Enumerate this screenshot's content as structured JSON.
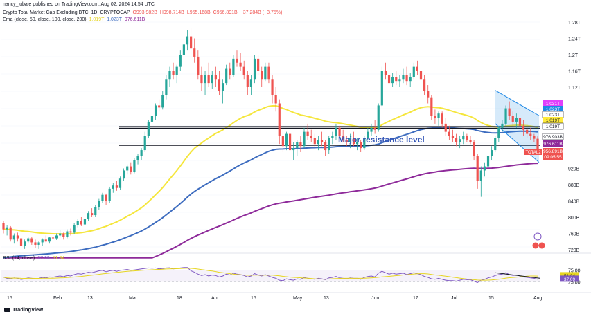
{
  "publisher": "nancy_lubale published on TradingView.com, Aug 02, 2024 14:54 UTC",
  "symbol": {
    "title": "Crypto Total Market Cap Excluding BTC, 1D, CRYPTOCAP",
    "o": "O993.982B",
    "h": "H998.714B",
    "l": "L955.168B",
    "c": "C956.891B",
    "chg": "−37.284B (−3.75%)"
  },
  "ema": {
    "title": "Ema (close, 50, close, 100, close, 200)",
    "v50": "1.019T",
    "v100": "1.023T",
    "v200": "976.611B"
  },
  "rsi": {
    "title": "RSI (14, close)",
    "v1": "37.09",
    "v2": "51.84"
  },
  "annotation": "Major resistance level",
  "footer": "TradingView",
  "colors": {
    "up": "#26a69a",
    "down": "#ef5350",
    "ema50": "#f5e63c",
    "ema100": "#3d6cbf",
    "ema200": "#8e2a9a",
    "rsi": "#7e57c2",
    "channel": "#1e88e5"
  },
  "chart_data": {
    "type": "candlestick",
    "title": "Crypto Total Market Cap Excluding BTC, 1D, CRYPTOCAP",
    "y_axis_ticks": [
      "1.28T",
      "1.24T",
      "1.2T",
      "1.16T",
      "1.12T",
      "920B",
      "880B",
      "840B",
      "800B",
      "760B",
      "720B"
    ],
    "x_axis_ticks": [
      "15",
      "Feb",
      "13",
      "Mar",
      "18",
      "Apr",
      "15",
      "May",
      "13",
      "Jun",
      "17",
      "Jul",
      "15",
      "Aug"
    ],
    "price_labels": [
      {
        "text": "1.031T",
        "color": "#e040fb"
      },
      {
        "text": "1.023T",
        "color": "#1e88e5"
      },
      {
        "text": "1.023T",
        "color": "#131722"
      },
      {
        "text": "1.019T",
        "color": "#ffeb3b"
      },
      {
        "text": "1.019T",
        "color": "#131722"
      },
      {
        "text": "976.903B",
        "color": "#131722"
      },
      {
        "text": "976.611B",
        "color": "#8e2a9a"
      },
      {
        "text": "956.891B",
        "color": "#ef5350"
      },
      {
        "text": "09:05:55",
        "color": "#ef5350"
      }
    ],
    "total_tag": "TOTAL2",
    "rsi_ticks": [
      "75.00",
      "25.00"
    ],
    "rsi_labels": [
      "51.84",
      "37.09"
    ],
    "resistance_levels": [
      "1.019T",
      "1.023T",
      "976.903B"
    ],
    "ohlc_daily": [
      [
        785,
        790,
        760,
        770
      ],
      [
        770,
        780,
        755,
        775
      ],
      [
        775,
        778,
        740,
        745
      ],
      [
        745,
        760,
        735,
        755
      ],
      [
        755,
        762,
        740,
        748
      ],
      [
        748,
        755,
        725,
        730
      ],
      [
        730,
        745,
        722,
        740
      ],
      [
        740,
        752,
        735,
        748
      ],
      [
        748,
        752,
        732,
        738
      ],
      [
        738,
        745,
        725,
        732
      ],
      [
        732,
        742,
        722,
        738
      ],
      [
        738,
        748,
        730,
        745
      ],
      [
        745,
        755,
        738,
        740
      ],
      [
        740,
        752,
        735,
        750
      ],
      [
        750,
        758,
        742,
        748
      ],
      [
        748,
        760,
        744,
        755
      ],
      [
        755,
        768,
        750,
        760
      ],
      [
        760,
        762,
        745,
        752
      ],
      [
        752,
        770,
        748,
        765
      ],
      [
        765,
        772,
        755,
        762
      ],
      [
        762,
        785,
        758,
        780
      ],
      [
        780,
        795,
        775,
        790
      ],
      [
        790,
        800,
        778,
        782
      ],
      [
        782,
        800,
        778,
        795
      ],
      [
        795,
        815,
        790,
        810
      ],
      [
        810,
        822,
        800,
        805
      ],
      [
        805,
        830,
        800,
        825
      ],
      [
        825,
        845,
        818,
        840
      ],
      [
        840,
        860,
        835,
        855
      ],
      [
        855,
        858,
        830,
        840
      ],
      [
        840,
        875,
        835,
        870
      ],
      [
        870,
        885,
        860,
        878
      ],
      [
        878,
        890,
        865,
        872
      ],
      [
        872,
        900,
        868,
        895
      ],
      [
        895,
        920,
        890,
        915
      ],
      [
        915,
        930,
        905,
        925
      ],
      [
        925,
        935,
        905,
        912
      ],
      [
        912,
        945,
        908,
        940
      ],
      [
        940,
        955,
        930,
        950
      ],
      [
        950,
        970,
        940,
        965
      ],
      [
        965,
        1010,
        960,
        1000
      ],
      [
        1000,
        1040,
        995,
        1035
      ],
      [
        1035,
        1060,
        1020,
        1050
      ],
      [
        1050,
        1080,
        1040,
        1075
      ],
      [
        1075,
        1090,
        1060,
        1070
      ],
      [
        1070,
        1110,
        1065,
        1100
      ],
      [
        1100,
        1150,
        1090,
        1140
      ],
      [
        1140,
        1170,
        1120,
        1160
      ],
      [
        1160,
        1180,
        1140,
        1150
      ],
      [
        1150,
        1175,
        1130,
        1170
      ],
      [
        1170,
        1210,
        1160,
        1200
      ],
      [
        1200,
        1235,
        1190,
        1225
      ],
      [
        1225,
        1260,
        1210,
        1245
      ],
      [
        1245,
        1265,
        1200,
        1215
      ],
      [
        1215,
        1240,
        1180,
        1195
      ],
      [
        1195,
        1210,
        1140,
        1150
      ],
      [
        1150,
        1170,
        1110,
        1130
      ],
      [
        1130,
        1160,
        1100,
        1150
      ],
      [
        1150,
        1180,
        1120,
        1130
      ],
      [
        1130,
        1160,
        1115,
        1150
      ],
      [
        1150,
        1170,
        1120,
        1140
      ],
      [
        1140,
        1160,
        1100,
        1110
      ],
      [
        1110,
        1140,
        1080,
        1130
      ],
      [
        1130,
        1175,
        1125,
        1165
      ],
      [
        1165,
        1180,
        1140,
        1150
      ],
      [
        1150,
        1200,
        1145,
        1190
      ],
      [
        1190,
        1210,
        1170,
        1180
      ],
      [
        1180,
        1205,
        1160,
        1170
      ],
      [
        1170,
        1185,
        1140,
        1150
      ],
      [
        1150,
        1160,
        1100,
        1120
      ],
      [
        1120,
        1150,
        1100,
        1140
      ],
      [
        1140,
        1200,
        1130,
        1190
      ],
      [
        1190,
        1200,
        1150,
        1160
      ],
      [
        1160,
        1170,
        1120,
        1140
      ],
      [
        1140,
        1180,
        1135,
        1170
      ],
      [
        1170,
        1180,
        1130,
        1140
      ],
      [
        1140,
        1150,
        1080,
        1100
      ],
      [
        1100,
        1120,
        1060,
        1080
      ],
      [
        1080,
        1090,
        980,
        1000
      ],
      [
        1000,
        1020,
        960,
        975
      ],
      [
        975,
        1010,
        965,
        1005
      ],
      [
        1005,
        1010,
        950,
        965
      ],
      [
        965,
        985,
        940,
        970
      ],
      [
        970,
        990,
        950,
        985
      ],
      [
        985,
        1000,
        960,
        975
      ],
      [
        975,
        1020,
        970,
        1010
      ],
      [
        1010,
        1030,
        990,
        1000
      ],
      [
        1000,
        1015,
        985,
        995
      ],
      [
        995,
        1005,
        970,
        980
      ],
      [
        980,
        1000,
        965,
        990
      ],
      [
        990,
        1010,
        975,
        985
      ],
      [
        985,
        990,
        950,
        965
      ],
      [
        965,
        1000,
        955,
        995
      ],
      [
        995,
        1010,
        980,
        1000
      ],
      [
        1000,
        1030,
        990,
        1020
      ],
      [
        1020,
        1025,
        995,
        1000
      ],
      [
        1000,
        1015,
        985,
        990
      ],
      [
        990,
        1000,
        975,
        985
      ],
      [
        985,
        1005,
        970,
        995
      ],
      [
        995,
        1010,
        975,
        980
      ],
      [
        980,
        995,
        965,
        985
      ],
      [
        985,
        990,
        960,
        970
      ],
      [
        970,
        1000,
        965,
        995
      ],
      [
        995,
        1020,
        990,
        1010
      ],
      [
        1010,
        1030,
        1000,
        1020
      ],
      [
        1020,
        1040,
        1005,
        1015
      ],
      [
        1015,
        1080,
        1010,
        1075
      ],
      [
        1075,
        1170,
        1070,
        1160
      ],
      [
        1160,
        1180,
        1140,
        1150
      ],
      [
        1150,
        1165,
        1120,
        1130
      ],
      [
        1130,
        1155,
        1120,
        1145
      ],
      [
        1145,
        1160,
        1125,
        1135
      ],
      [
        1135,
        1150,
        1120,
        1140
      ],
      [
        1140,
        1165,
        1130,
        1150
      ],
      [
        1150,
        1170,
        1125,
        1135
      ],
      [
        1135,
        1155,
        1120,
        1145
      ],
      [
        1145,
        1180,
        1140,
        1170
      ],
      [
        1170,
        1185,
        1150,
        1160
      ],
      [
        1160,
        1175,
        1130,
        1140
      ],
      [
        1140,
        1150,
        1100,
        1110
      ],
      [
        1110,
        1125,
        1080,
        1095
      ],
      [
        1095,
        1100,
        1040,
        1050
      ],
      [
        1050,
        1065,
        1030,
        1045
      ],
      [
        1045,
        1060,
        1025,
        1055
      ],
      [
        1055,
        1060,
        1020,
        1030
      ],
      [
        1030,
        1045,
        1000,
        1010
      ],
      [
        1010,
        1025,
        990,
        1000
      ],
      [
        1000,
        1015,
        985,
        995
      ],
      [
        995,
        1005,
        975,
        985
      ],
      [
        985,
        1000,
        970,
        992
      ],
      [
        992,
        1010,
        980,
        1000
      ],
      [
        1000,
        1005,
        985,
        990
      ],
      [
        990,
        1000,
        980,
        985
      ],
      [
        985,
        990,
        940,
        950
      ],
      [
        950,
        955,
        870,
        890
      ],
      [
        890,
        925,
        850,
        915
      ],
      [
        915,
        935,
        900,
        925
      ],
      [
        925,
        960,
        915,
        950
      ],
      [
        950,
        975,
        940,
        965
      ],
      [
        965,
        1000,
        960,
        995
      ],
      [
        995,
        1025,
        985,
        1020
      ],
      [
        1020,
        1040,
        1010,
        1030
      ],
      [
        1030,
        1075,
        1025,
        1068
      ],
      [
        1068,
        1085,
        1040,
        1050
      ],
      [
        1050,
        1060,
        1025,
        1035
      ],
      [
        1035,
        1055,
        1020,
        1045
      ],
      [
        1045,
        1050,
        1015,
        1025
      ],
      [
        1025,
        1040,
        1000,
        1015
      ],
      [
        1015,
        1030,
        995,
        1005
      ],
      [
        1005,
        1020,
        990,
        1000
      ],
      [
        1000,
        1005,
        985,
        993
      ],
      [
        993,
        999,
        955,
        957
      ]
    ],
    "rsi_series": [
      45,
      40,
      38,
      42,
      40,
      35,
      38,
      42,
      40,
      38,
      40,
      44,
      42,
      46,
      45,
      48,
      50,
      47,
      52,
      50,
      56,
      60,
      58,
      62,
      66,
      64,
      68,
      72,
      74,
      68,
      72,
      74,
      70,
      74,
      76,
      78,
      74,
      76,
      78,
      80,
      82,
      84,
      83,
      84,
      80,
      82,
      84,
      85,
      80,
      82,
      84,
      86,
      86,
      72,
      66,
      58,
      52,
      56,
      50,
      54,
      52,
      46,
      50,
      58,
      54,
      62,
      58,
      56,
      52,
      46,
      50,
      60,
      54,
      50,
      56,
      50,
      44,
      40,
      32,
      30,
      38,
      34,
      32,
      38,
      36,
      44,
      40,
      38,
      36,
      40,
      38,
      34,
      42,
      44,
      48,
      42,
      40,
      38,
      42,
      40,
      40,
      36,
      44,
      48,
      50,
      46,
      62,
      70,
      64,
      58,
      62,
      58,
      60,
      62,
      56,
      60,
      64,
      60,
      56,
      48,
      44,
      38,
      36,
      40,
      36,
      32,
      30,
      30,
      28,
      32,
      36,
      34,
      34,
      28,
      22,
      32,
      36,
      42,
      46,
      52,
      56,
      58,
      64,
      56,
      52,
      54,
      50,
      46,
      44,
      42,
      40,
      36
    ]
  }
}
